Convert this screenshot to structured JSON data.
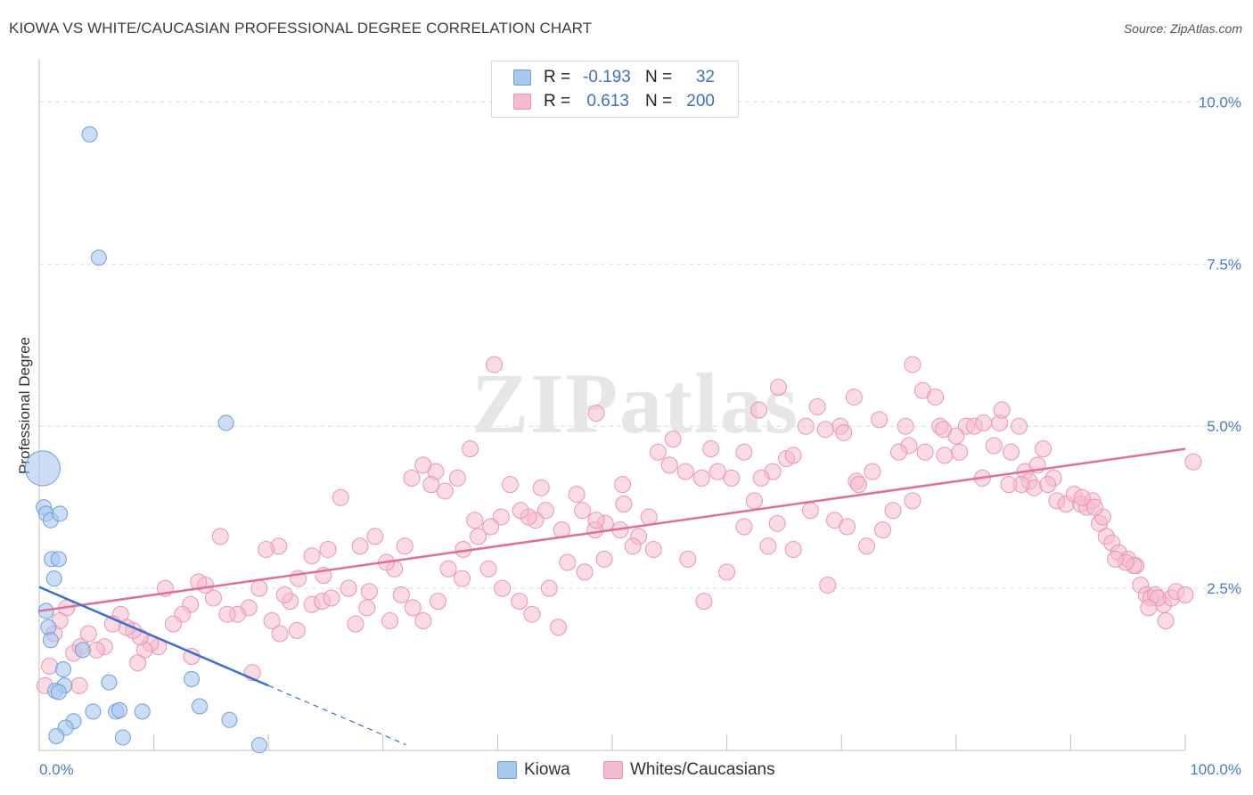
{
  "title": "KIOWA VS WHITE/CAUCASIAN PROFESSIONAL DEGREE CORRELATION CHART",
  "source": "Source: ZipAtlas.com",
  "watermark": "ZIPatlas",
  "stats": {
    "kiowa": {
      "r_label": "R =",
      "r_value": "-0.193",
      "n_label": "N =",
      "n_value": "32"
    },
    "white": {
      "r_label": "R =",
      "r_value": "0.613",
      "n_label": "N =",
      "n_value": "200"
    }
  },
  "legend": {
    "kiowa": "Kiowa",
    "white": "Whites/Caucasians"
  },
  "chart_data": {
    "type": "scatter",
    "title": "KIOWA VS WHITE/CAUCASIAN PROFESSIONAL DEGREE CORRELATION CHART",
    "xlabel": "",
    "ylabel": "Professional Degree",
    "xlim": [
      0,
      100
    ],
    "ylim": [
      0,
      10.5
    ],
    "x_tick_labels": [
      "0.0%",
      "100.0%"
    ],
    "y_ticks": [
      2.5,
      5.0,
      7.5,
      10.0
    ],
    "y_tick_labels": [
      "2.5%",
      "5.0%",
      "7.5%",
      "10.0%"
    ],
    "grid": true,
    "colors": {
      "kiowa_fill": "#a9c8ee",
      "kiowa_stroke": "#6d9fd9",
      "kiowa_line": "#3a6fcf",
      "white_fill": "#f6bccd",
      "white_stroke": "#e995b0",
      "white_line": "#e06e98",
      "tick": "#4a7ac4",
      "grid": "#dcdcdc"
    },
    "series": [
      {
        "name": "Kiowa",
        "r": -0.193,
        "n": 32,
        "trend": {
          "x0": 0,
          "y0": 2.52,
          "x1": 20,
          "y1": 1.0,
          "dash_to_x": 32
        },
        "points": [
          [
            4.4,
            9.5
          ],
          [
            5.2,
            7.6
          ],
          [
            16.3,
            5.05
          ],
          [
            0.3,
            4.35
          ],
          [
            0.4,
            3.75
          ],
          [
            0.6,
            3.65
          ],
          [
            1.0,
            3.55
          ],
          [
            1.8,
            3.65
          ],
          [
            1.1,
            2.95
          ],
          [
            1.7,
            2.95
          ],
          [
            1.3,
            2.65
          ],
          [
            0.6,
            2.15
          ],
          [
            0.8,
            1.9
          ],
          [
            1.0,
            1.7
          ],
          [
            3.8,
            1.55
          ],
          [
            2.1,
            1.25
          ],
          [
            6.1,
            1.05
          ],
          [
            13.3,
            1.1
          ],
          [
            2.2,
            1.0
          ],
          [
            1.4,
            0.92
          ],
          [
            1.7,
            0.9
          ],
          [
            4.7,
            0.6
          ],
          [
            6.7,
            0.6
          ],
          [
            7.0,
            0.62
          ],
          [
            9.0,
            0.6
          ],
          [
            14.0,
            0.68
          ],
          [
            3.0,
            0.45
          ],
          [
            2.3,
            0.35
          ],
          [
            16.6,
            0.47
          ],
          [
            1.5,
            0.22
          ],
          [
            7.3,
            0.2
          ],
          [
            19.2,
            0.08
          ]
        ],
        "point_sizes": [
          1,
          1,
          1,
          2.3,
          1,
          1,
          1,
          1,
          1,
          1,
          1,
          1,
          1,
          1,
          1,
          1,
          1,
          1,
          1,
          1,
          1,
          1,
          1,
          1,
          1,
          1,
          1,
          1,
          1,
          1,
          1,
          1
        ]
      },
      {
        "name": "Whites/Caucasians",
        "r": 0.613,
        "n": 200,
        "trend": {
          "x0": 0,
          "y0": 2.15,
          "x1": 100,
          "y1": 4.65
        },
        "points": [
          [
            39.7,
            5.95
          ],
          [
            37.6,
            4.65
          ],
          [
            48.6,
            5.2
          ],
          [
            55.3,
            4.8
          ],
          [
            58.6,
            4.65
          ],
          [
            62.8,
            5.25
          ],
          [
            64.5,
            5.6
          ],
          [
            65.2,
            4.5
          ],
          [
            67.9,
            5.3
          ],
          [
            69.9,
            5.0
          ],
          [
            71.1,
            5.45
          ],
          [
            71.3,
            4.15
          ],
          [
            73.3,
            5.1
          ],
          [
            75.6,
            5.0
          ],
          [
            75.9,
            4.7
          ],
          [
            76.2,
            5.95
          ],
          [
            77.1,
            5.55
          ],
          [
            78.2,
            5.45
          ],
          [
            78.6,
            5.0
          ],
          [
            79.0,
            4.55
          ],
          [
            80.3,
            4.6
          ],
          [
            80.9,
            5.0
          ],
          [
            81.6,
            5.0
          ],
          [
            82.4,
            5.05
          ],
          [
            83.3,
            4.7
          ],
          [
            83.8,
            5.05
          ],
          [
            84.0,
            5.25
          ],
          [
            84.8,
            4.6
          ],
          [
            85.5,
            5.0
          ],
          [
            86.0,
            4.3
          ],
          [
            86.4,
            4.15
          ],
          [
            86.8,
            4.05
          ],
          [
            87.6,
            4.65
          ],
          [
            88.5,
            4.2
          ],
          [
            88.8,
            3.85
          ],
          [
            89.6,
            3.8
          ],
          [
            90.3,
            3.95
          ],
          [
            90.9,
            3.8
          ],
          [
            91.4,
            3.75
          ],
          [
            91.9,
            3.85
          ],
          [
            92.5,
            3.5
          ],
          [
            92.8,
            3.6
          ],
          [
            93.1,
            3.3
          ],
          [
            93.6,
            3.2
          ],
          [
            94.2,
            3.05
          ],
          [
            95.0,
            2.95
          ],
          [
            95.7,
            2.85
          ],
          [
            96.1,
            2.55
          ],
          [
            96.6,
            2.4
          ],
          [
            97.0,
            2.35
          ],
          [
            97.4,
            2.4
          ],
          [
            98.1,
            2.25
          ],
          [
            98.8,
            2.35
          ],
          [
            99.2,
            2.45
          ],
          [
            100.0,
            2.4
          ],
          [
            100.7,
            4.45
          ],
          [
            97.6,
            2.35
          ],
          [
            98.3,
            2.0
          ],
          [
            96.8,
            2.2
          ],
          [
            95.5,
            2.85
          ],
          [
            94.8,
            2.9
          ],
          [
            93.9,
            2.95
          ],
          [
            92.1,
            3.75
          ],
          [
            91.0,
            3.9
          ],
          [
            88.0,
            4.1
          ],
          [
            87.1,
            4.4
          ],
          [
            85.7,
            4.1
          ],
          [
            84.6,
            4.1
          ],
          [
            82.3,
            4.2
          ],
          [
            80.0,
            4.85
          ],
          [
            78.9,
            4.95
          ],
          [
            77.3,
            4.6
          ],
          [
            75.0,
            4.6
          ],
          [
            72.7,
            4.3
          ],
          [
            71.5,
            4.1
          ],
          [
            70.2,
            4.9
          ],
          [
            68.6,
            4.95
          ],
          [
            66.9,
            5.0
          ],
          [
            65.8,
            4.55
          ],
          [
            64.0,
            4.3
          ],
          [
            63.0,
            4.2
          ],
          [
            61.5,
            4.6
          ],
          [
            60.4,
            4.2
          ],
          [
            59.2,
            4.3
          ],
          [
            57.8,
            4.2
          ],
          [
            56.4,
            4.3
          ],
          [
            55.0,
            4.4
          ],
          [
            54.0,
            4.6
          ],
          [
            53.2,
            3.6
          ],
          [
            52.3,
            3.3
          ],
          [
            51.0,
            3.8
          ],
          [
            50.7,
            3.4
          ],
          [
            49.4,
            3.5
          ],
          [
            48.5,
            3.4
          ],
          [
            47.4,
            3.7
          ],
          [
            46.9,
            3.95
          ],
          [
            45.6,
            3.4
          ],
          [
            44.2,
            3.7
          ],
          [
            43.8,
            4.05
          ],
          [
            43.3,
            3.55
          ],
          [
            42.7,
            3.6
          ],
          [
            42.0,
            3.7
          ],
          [
            41.1,
            4.1
          ],
          [
            40.3,
            3.6
          ],
          [
            39.4,
            3.45
          ],
          [
            38.3,
            3.3
          ],
          [
            37.0,
            3.1
          ],
          [
            36.5,
            4.2
          ],
          [
            35.4,
            4.0
          ],
          [
            34.6,
            4.3
          ],
          [
            34.2,
            4.1
          ],
          [
            33.5,
            4.4
          ],
          [
            32.5,
            4.2
          ],
          [
            31.9,
            3.15
          ],
          [
            31.0,
            2.8
          ],
          [
            30.3,
            2.9
          ],
          [
            29.3,
            3.3
          ],
          [
            28.8,
            2.45
          ],
          [
            28.0,
            3.15
          ],
          [
            27.0,
            2.5
          ],
          [
            26.3,
            3.9
          ],
          [
            25.2,
            3.1
          ],
          [
            24.8,
            2.7
          ],
          [
            23.8,
            3.0
          ],
          [
            22.6,
            2.65
          ],
          [
            21.9,
            2.3
          ],
          [
            21.4,
            2.4
          ],
          [
            20.9,
            3.15
          ],
          [
            19.8,
            3.1
          ],
          [
            19.2,
            2.5
          ],
          [
            18.3,
            2.2
          ],
          [
            17.3,
            2.1
          ],
          [
            16.4,
            2.1
          ],
          [
            15.8,
            3.3
          ],
          [
            15.2,
            2.35
          ],
          [
            14.5,
            2.55
          ],
          [
            13.9,
            2.6
          ],
          [
            13.2,
            2.25
          ],
          [
            12.5,
            2.1
          ],
          [
            11.7,
            1.95
          ],
          [
            11.0,
            2.5
          ],
          [
            10.4,
            1.6
          ],
          [
            9.7,
            1.65
          ],
          [
            9.2,
            1.55
          ],
          [
            8.8,
            1.75
          ],
          [
            8.2,
            1.85
          ],
          [
            7.6,
            1.9
          ],
          [
            7.1,
            2.1
          ],
          [
            6.4,
            1.95
          ],
          [
            5.7,
            1.6
          ],
          [
            5.0,
            1.55
          ],
          [
            4.3,
            1.8
          ],
          [
            3.6,
            1.6
          ],
          [
            3.0,
            1.5
          ],
          [
            2.4,
            2.2
          ],
          [
            1.8,
            2.0
          ],
          [
            1.3,
            1.8
          ],
          [
            0.9,
            1.3
          ],
          [
            0.5,
            1.0
          ],
          [
            3.5,
            1.0
          ],
          [
            18.6,
            1.2
          ],
          [
            20.3,
            2.0
          ],
          [
            21.0,
            1.8
          ],
          [
            22.5,
            1.85
          ],
          [
            23.8,
            2.25
          ],
          [
            24.7,
            2.3
          ],
          [
            25.5,
            2.35
          ],
          [
            27.6,
            1.95
          ],
          [
            28.6,
            2.2
          ],
          [
            30.6,
            2.0
          ],
          [
            31.6,
            2.4
          ],
          [
            32.6,
            2.2
          ],
          [
            33.5,
            2.0
          ],
          [
            34.8,
            2.3
          ],
          [
            35.7,
            2.8
          ],
          [
            36.9,
            2.65
          ],
          [
            38.0,
            3.55
          ],
          [
            39.2,
            2.8
          ],
          [
            40.4,
            2.5
          ],
          [
            41.9,
            2.3
          ],
          [
            43.0,
            2.1
          ],
          [
            44.5,
            2.5
          ],
          [
            45.3,
            1.9
          ],
          [
            46.1,
            2.9
          ],
          [
            47.6,
            2.75
          ],
          [
            48.6,
            3.55
          ],
          [
            49.3,
            2.95
          ],
          [
            50.9,
            4.1
          ],
          [
            51.8,
            3.15
          ],
          [
            53.6,
            3.1
          ],
          [
            56.6,
            2.95
          ],
          [
            58.0,
            2.3
          ],
          [
            60.0,
            2.75
          ],
          [
            61.5,
            3.45
          ],
          [
            62.4,
            3.85
          ],
          [
            63.6,
            3.15
          ],
          [
            64.4,
            3.5
          ],
          [
            65.8,
            3.1
          ],
          [
            67.3,
            3.7
          ],
          [
            68.8,
            2.55
          ],
          [
            69.4,
            3.55
          ],
          [
            70.5,
            3.45
          ],
          [
            72.2,
            3.15
          ],
          [
            73.6,
            3.4
          ],
          [
            74.5,
            3.7
          ],
          [
            76.2,
            3.85
          ],
          [
            8.6,
            1.35
          ],
          [
            13.3,
            1.45
          ]
        ]
      }
    ]
  }
}
